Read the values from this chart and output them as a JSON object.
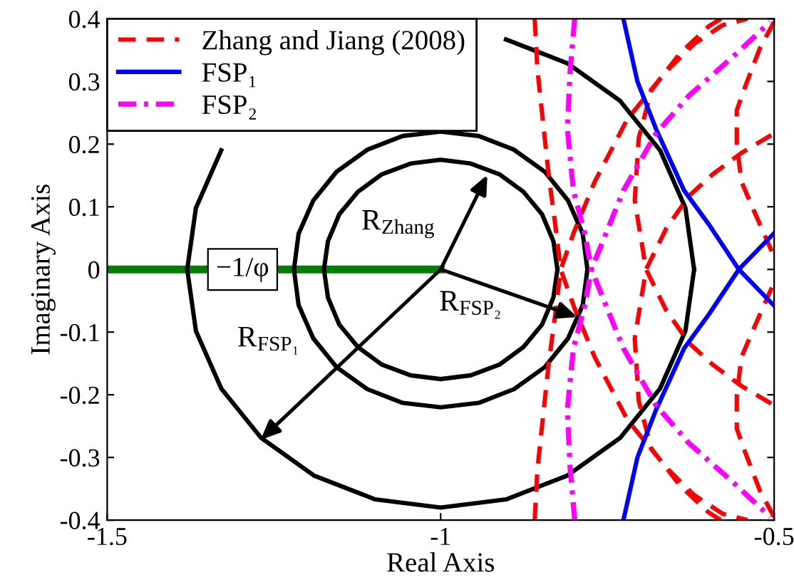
{
  "chart_data": {
    "type": "line",
    "xlabel": "Real Axis",
    "ylabel": "Imaginary Axis",
    "xlim": [
      -1.5,
      -0.5
    ],
    "xticks": [
      -1.5,
      -1,
      -0.5
    ],
    "ylim": [
      -0.4,
      0.4
    ],
    "yticks": [
      -0.4,
      -0.3,
      -0.2,
      -0.1,
      0,
      0.1,
      0.2,
      0.3,
      0.4
    ],
    "grid": false,
    "legend": "top left",
    "series": [
      {
        "type": "line",
        "name": "−1/φ",
        "color": "#008000",
        "x": [
          -1.5,
          -1
        ],
        "values": [
          0,
          0
        ]
      },
      {
        "color": "#000000",
        "x": [
          -0.825,
          -0.831,
          -0.848,
          -0.876,
          -0.912,
          -0.955,
          -1,
          -1.045,
          -1.088,
          -1.124,
          -1.152,
          -1.169,
          -1.175,
          null,
          -1.175,
          -1.169,
          -1.152,
          -1.124,
          -1.088,
          -1.045,
          -1,
          -0.955,
          -0.912,
          -0.876,
          -0.848,
          -0.831,
          -0.825
        ],
        "values": [
          0,
          0.045,
          0.088,
          0.124,
          0.152,
          0.169,
          0.175,
          0.169,
          0.152,
          0.124,
          0.088,
          0.045,
          0,
          null,
          0,
          -0.045,
          -0.088,
          -0.124,
          -0.152,
          -0.169,
          -0.175,
          -0.169,
          -0.152,
          -0.124,
          -0.088,
          -0.045,
          0
        ]
      },
      {
        "color": "#000000",
        "x": [
          -0.78,
          -0.787,
          -0.809,
          -0.844,
          -0.89,
          -0.943,
          -1,
          -1.057,
          -1.11,
          -1.156,
          -1.191,
          -1.213,
          -1.22,
          null,
          -1.22,
          -1.213,
          -1.191,
          -1.156,
          -1.11,
          -1.057,
          -1,
          -0.943,
          -0.89,
          -0.844,
          -0.809,
          -0.787,
          -0.78
        ],
        "values": [
          0,
          0.057,
          0.11,
          0.156,
          0.191,
          0.213,
          0.22,
          0.213,
          0.191,
          0.156,
          0.11,
          0.057,
          0,
          null,
          0,
          -0.057,
          -0.11,
          -0.156,
          -0.191,
          -0.213,
          -0.22,
          -0.213,
          -0.191,
          -0.156,
          -0.11,
          -0.057,
          0
        ]
      },
      {
        "color": "#000000",
        "x": [
          -0.62,
          -0.633,
          -0.671,
          -0.731,
          -0.81,
          -0.902,
          -1,
          -1.098,
          -1.19,
          -1.269,
          -1.329,
          -1.367,
          -1.38,
          null,
          -1.38,
          -1.367,
          -1.329,
          -1.269,
          -1.19,
          -1.098,
          -1,
          -0.902,
          -0.81,
          -0.731,
          -0.671,
          -0.633,
          -0.62
        ],
        "values": [
          0,
          0.098,
          0.19,
          0.269,
          0.329,
          0.367,
          null,
          null,
          null,
          null,
          0.19,
          0.098,
          0,
          null,
          0,
          -0.098,
          -0.19,
          -0.269,
          -0.329,
          -0.367,
          -0.38,
          -0.367,
          -0.329,
          -0.269,
          -0.19,
          -0.098,
          0
        ]
      },
      {
        "name": "Zhang and Jiang (2008)",
        "color": "#ff0000",
        "line_style": "dashed",
        "x": [
          -0.859,
          -0.855,
          -0.848,
          -0.838,
          -0.828,
          -0.82,
          -0.8,
          -0.769,
          -0.72,
          -0.662,
          -0.62,
          -0.577,
          -0.54,
          null,
          -0.859,
          -0.855,
          -0.848,
          -0.838,
          -0.828,
          -0.82,
          -0.8,
          -0.769,
          -0.72,
          -0.662,
          -0.62,
          -0.577,
          -0.54,
          null,
          -0.58,
          -0.598,
          -0.641,
          -0.684,
          -0.703,
          -0.709,
          -0.692,
          -0.662,
          -0.628,
          -0.592,
          -0.549,
          -0.5,
          null,
          -0.58,
          -0.598,
          -0.641,
          -0.684,
          -0.703,
          -0.709,
          -0.692,
          -0.662,
          -0.628,
          -0.592,
          -0.549,
          -0.5,
          null,
          -0.5,
          -0.521,
          -0.543,
          -0.556,
          -0.556,
          -0.549,
          -0.528,
          -0.506,
          -0.5,
          null,
          -0.5,
          -0.521,
          -0.543,
          -0.556,
          -0.556,
          -0.549,
          -0.528,
          -0.506,
          -0.5
        ],
        "values": [
          0.4,
          0.32,
          0.25,
          0.15,
          0.07,
          0,
          -0.06,
          -0.14,
          -0.24,
          -0.316,
          -0.36,
          -0.39,
          -0.4,
          null,
          -0.4,
          -0.32,
          -0.25,
          -0.15,
          -0.07,
          0,
          0.06,
          0.14,
          0.24,
          0.316,
          0.36,
          0.39,
          0.4,
          null,
          0.4,
          0.388,
          0.345,
          0.286,
          0.21,
          0.11,
          0,
          -0.065,
          -0.117,
          -0.152,
          -0.186,
          -0.217,
          null,
          -0.4,
          -0.388,
          -0.345,
          -0.286,
          -0.21,
          -0.11,
          0,
          0.065,
          0.117,
          0.152,
          0.186,
          0.217,
          null,
          0.395,
          0.354,
          0.293,
          0.254,
          0.2,
          0.14,
          0.088,
          0.035,
          0.02,
          null,
          -0.395,
          -0.354,
          -0.293,
          -0.254,
          -0.2,
          -0.14,
          -0.088,
          -0.035,
          -0.02
        ]
      },
      {
        "name": "FSP₁",
        "color": "#0000ff",
        "line_style": "solid",
        "x": [
          -0.726,
          -0.705,
          -0.677,
          -0.635,
          -0.598,
          -0.553,
          -0.5,
          null,
          -0.726,
          -0.705,
          -0.677,
          -0.635,
          -0.598,
          -0.553,
          -0.5
        ],
        "values": [
          0.4,
          0.3,
          0.224,
          0.126,
          0.072,
          0,
          -0.058,
          null,
          -0.4,
          -0.3,
          -0.224,
          -0.126,
          -0.072,
          0,
          0.058
        ]
      },
      {
        "name": "FSP₂",
        "color": "#ff00ff",
        "line_style": "dashdot",
        "x": [
          -0.799,
          -0.806,
          -0.81,
          -0.801,
          -0.784,
          -0.774,
          -0.726,
          -0.677,
          -0.628,
          -0.556,
          -0.506,
          null,
          -0.799,
          -0.806,
          -0.81,
          -0.801,
          -0.784,
          -0.774,
          -0.726,
          -0.677,
          -0.628,
          -0.556,
          -0.506
        ],
        "values": [
          0.4,
          0.315,
          0.224,
          0.126,
          0.058,
          0,
          -0.126,
          -0.217,
          -0.277,
          -0.345,
          -0.395,
          null,
          -0.4,
          -0.315,
          -0.224,
          -0.126,
          -0.058,
          0,
          0.126,
          0.217,
          0.277,
          0.345,
          0.395
        ]
      }
    ],
    "annotations": [
      {
        "text": "R$_{Zhang}$",
        "x": -0.93,
        "y": 0.151
      },
      {
        "text": "R$_{FSP₂}$",
        "x": -0.795,
        "y": -0.076
      },
      {
        "text": "R$_{FSP₁}$",
        "x": -1.27,
        "y": -0.272
      }
    ]
  }
}
